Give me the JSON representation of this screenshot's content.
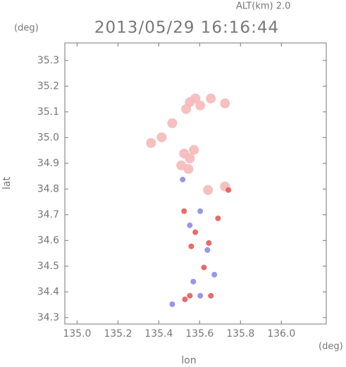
{
  "chart_data": {
    "type": "scatter",
    "title": "2013/05/29 16:16:44",
    "annotation": "ALT(km) 2.0",
    "y_unit": "(deg)",
    "x_unit": "(deg)",
    "x_label": "lon",
    "y_label": "lat",
    "xlim": [
      134.94,
      136.22
    ],
    "ylim": [
      34.275,
      35.368
    ],
    "xticks": [
      {
        "value": 135,
        "label": "135.0"
      },
      135.2,
      135.4,
      135.6,
      135.8,
      {
        "value": 136,
        "label": "136.0"
      }
    ],
    "yticks": [
      34.3,
      34.4,
      34.5,
      34.6,
      34.7,
      34.8,
      34.9,
      {
        "value": 35,
        "label": "35.0"
      },
      35.1,
      35.2,
      35.3
    ],
    "series": [
      {
        "color": "#f5b9b9",
        "x": [
          135.552,
          135.579,
          135.534,
          135.603,
          135.655,
          135.724,
          135.466,
          135.414,
          135.362,
          135.524,
          135.552,
          135.545,
          135.51,
          135.572,
          135.641,
          135.724
        ],
        "values": [
          35.138,
          35.152,
          35.111,
          35.125,
          35.152,
          35.133,
          35.056,
          35.001,
          34.979,
          34.938,
          34.919,
          34.878,
          34.892,
          34.952,
          34.796,
          34.81
        ]
      },
      {
        "color": "#e85a5a",
        "x": [
          135.524,
          135.645,
          135.552,
          135.655,
          135.528,
          135.579,
          135.69,
          135.621,
          135.559,
          135.741
        ],
        "values": [
          34.714,
          34.59,
          34.385,
          34.385,
          34.371,
          34.632,
          34.686,
          34.495,
          34.577,
          34.796
        ]
      },
      {
        "color": "#8c8ce6",
        "x": [
          135.552,
          135.603,
          135.672,
          135.517,
          135.603,
          135.569,
          135.466,
          135.638
        ],
        "values": [
          34.659,
          34.385,
          34.467,
          34.837,
          34.714,
          34.44,
          34.352,
          34.563
        ]
      }
    ]
  }
}
